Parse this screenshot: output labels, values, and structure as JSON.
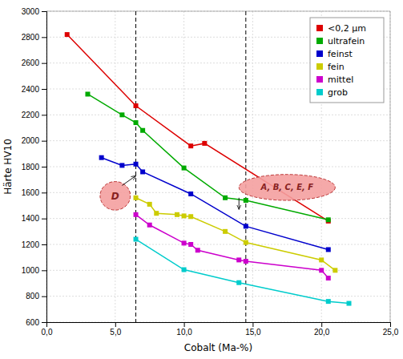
{
  "chart_data": {
    "type": "line",
    "marker": "square",
    "xlabel": "Cobalt (Ma-%)",
    "ylabel": "Härte HV10",
    "xlim": [
      0,
      25
    ],
    "ylim": [
      600,
      3000
    ],
    "xticks": [
      {
        "value": 0,
        "label": "0,0"
      },
      {
        "value": 5,
        "label": "5,0"
      },
      {
        "value": 10,
        "label": "10,0"
      },
      {
        "value": 15,
        "label": "15,0"
      },
      {
        "value": 20,
        "label": "20,0"
      },
      {
        "value": 25,
        "label": "25,0"
      }
    ],
    "yticks": [
      600,
      800,
      1000,
      1200,
      1400,
      1600,
      1800,
      2000,
      2200,
      2400,
      2600,
      2800,
      3000
    ],
    "grid": true,
    "legend": "top-right",
    "series": [
      {
        "name": "<0,2 μm",
        "color": "#dd0000",
        "x": [
          1.5,
          6.5,
          10.5,
          11.5,
          20.5
        ],
        "values": [
          2820,
          2270,
          1960,
          1980,
          1380
        ]
      },
      {
        "name": "ultrafein",
        "color": "#00aa00",
        "x": [
          3.0,
          5.5,
          6.5,
          7.0,
          10.0,
          13.0,
          14.5,
          20.5
        ],
        "values": [
          2360,
          2200,
          2140,
          2080,
          1790,
          1560,
          1540,
          1390
        ]
      },
      {
        "name": "feinst",
        "color": "#0000cc",
        "x": [
          4.0,
          5.5,
          6.5,
          7.0,
          10.5,
          14.5,
          20.5
        ],
        "values": [
          1870,
          1810,
          1820,
          1760,
          1590,
          1340,
          1160
        ]
      },
      {
        "name": "fein",
        "color": "#cccc00",
        "x": [
          6.5,
          7.5,
          8.0,
          9.5,
          10.0,
          10.5,
          13.0,
          14.5,
          20.0,
          21.0
        ],
        "values": [
          1560,
          1510,
          1440,
          1430,
          1420,
          1415,
          1300,
          1215,
          1080,
          1000
        ]
      },
      {
        "name": "mittel",
        "color": "#cc00cc",
        "x": [
          6.5,
          7.5,
          10.0,
          10.5,
          11.0,
          14.0,
          14.5,
          20.0,
          20.5
        ],
        "values": [
          1430,
          1350,
          1210,
          1200,
          1155,
          1080,
          1070,
          1000,
          940
        ]
      },
      {
        "name": "grob",
        "color": "#00cccc",
        "x": [
          6.5,
          10.0,
          14.0,
          20.5,
          22.0
        ],
        "values": [
          1240,
          1005,
          905,
          760,
          745
        ]
      }
    ],
    "vlines": [
      6.5,
      14.5
    ],
    "annotations": [
      {
        "text": "D",
        "x": 5.0,
        "y": 1575,
        "arrow_x": 6.5,
        "arrow_y": 1730
      },
      {
        "text": "A, B, C, E, F",
        "x": 17.5,
        "y": 1640,
        "arrow_x": 14.0,
        "arrow_y": 1470
      }
    ]
  }
}
